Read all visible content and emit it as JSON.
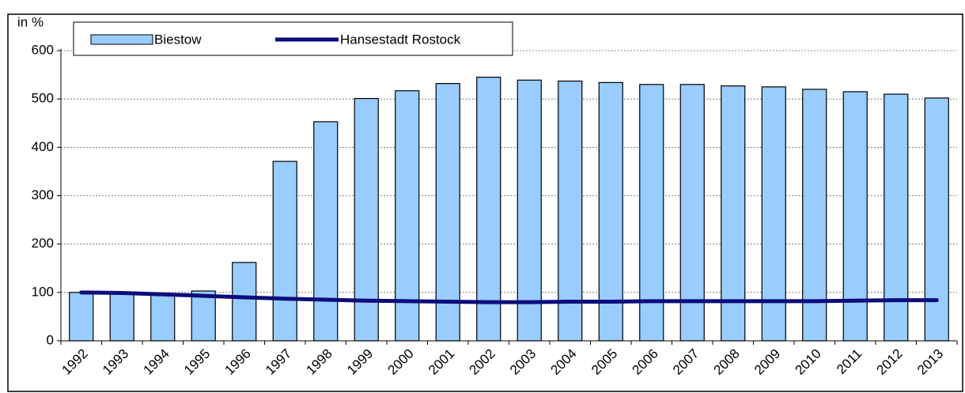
{
  "chart_data": {
    "type": "bar",
    "ylabel": "in %",
    "categories": [
      "1992",
      "1993",
      "1994",
      "1995",
      "1996",
      "1997",
      "1998",
      "1999",
      "2000",
      "2001",
      "2002",
      "2003",
      "2004",
      "2005",
      "2006",
      "2007",
      "2008",
      "2009",
      "2010",
      "2011",
      "2012",
      "2013"
    ],
    "series": [
      {
        "name": "Biestow",
        "type": "bar",
        "color": "#99ccff",
        "values": [
          100,
          98,
          97,
          103,
          162,
          371,
          453,
          501,
          517,
          532,
          545,
          539,
          537,
          534,
          530,
          530,
          527,
          525,
          520,
          515,
          510,
          502
        ]
      },
      {
        "name": "Hansestadt Rostock",
        "type": "line",
        "color": "#0c0c7c",
        "values": [
          100,
          99,
          96,
          93,
          90,
          87,
          85,
          83,
          82,
          81,
          80,
          80,
          81,
          81,
          82,
          82,
          82,
          82,
          82,
          83,
          84,
          84
        ]
      }
    ],
    "ylim": [
      0,
      600
    ],
    "yticks": [
      0,
      100,
      200,
      300,
      400,
      500,
      600
    ],
    "grid": true,
    "legend": "upper left"
  }
}
